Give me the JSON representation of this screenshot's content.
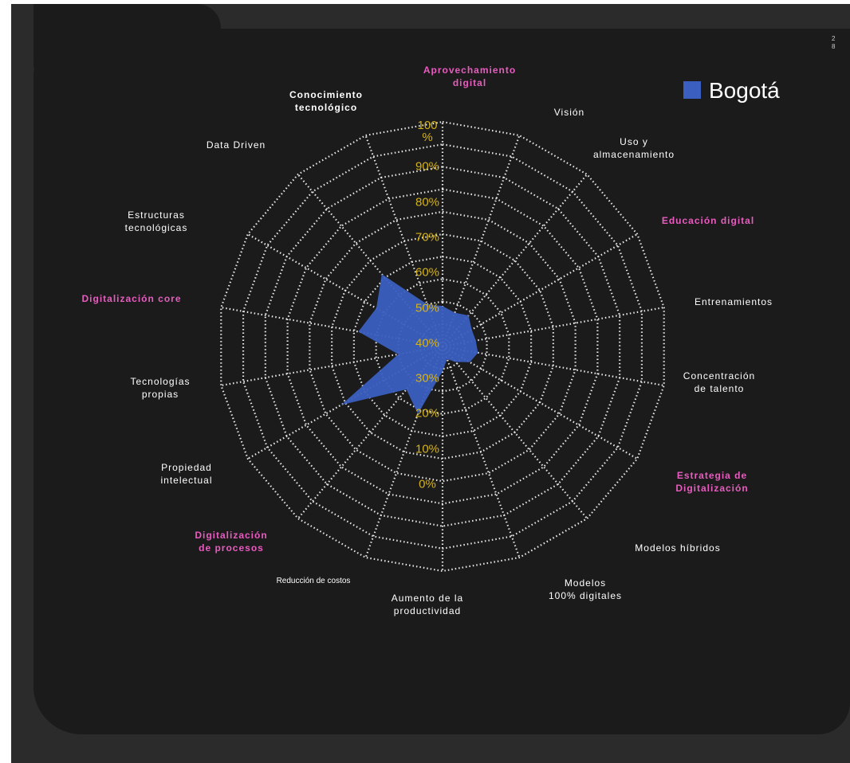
{
  "chart_data": {
    "type": "radar",
    "categories": [
      "Aprovechamiento\ndigital",
      "Visión",
      "Uso y\nalmacenamiento",
      "Educación digital",
      "Entrenamientos",
      "Concentración\nde talento",
      "Estrategia de\nDigitalización",
      "Modelos híbridos",
      "Modelos\n100% digitales",
      "Aumento de la\nproductividad",
      "Reducción de costos",
      "Digitalización\nde procesos",
      "Propiedad\nintelectual",
      "Tecnologías\npropias",
      "Digitalización core",
      "Estructuras\ntecnológicas",
      "Data Driven",
      "Conocimiento\ntecnológico"
    ],
    "highlighted": [
      0,
      3,
      6,
      11,
      14
    ],
    "highlight_color": "#e85cc0",
    "series": [
      {
        "name": "Bogotá",
        "color": "#3a5fc0",
        "values": [
          18,
          16,
          18,
          15,
          15,
          16,
          14,
          9,
          6,
          11,
          32,
          25,
          52,
          20,
          38,
          34,
          42,
          20
        ]
      }
    ],
    "ylim": [
      0,
      100
    ],
    "yticks": [
      {
        "value": 100,
        "label": "100\n%"
      },
      {
        "value": 90,
        "label": "90%"
      },
      {
        "value": 80,
        "label": "80%"
      },
      {
        "value": 70,
        "label": "70%"
      },
      {
        "value": 60,
        "label": "60%"
      },
      {
        "value": 50,
        "label": "50%"
      },
      {
        "value": 40,
        "label": "40%"
      },
      {
        "value": 30,
        "label": "30%"
      },
      {
        "value": 20,
        "label": "20%"
      },
      {
        "value": 10,
        "label": "10%"
      },
      {
        "value": 0,
        "label": "0%"
      }
    ],
    "grid": true,
    "legend": "upper right",
    "page_number": [
      "2",
      "8"
    ]
  }
}
